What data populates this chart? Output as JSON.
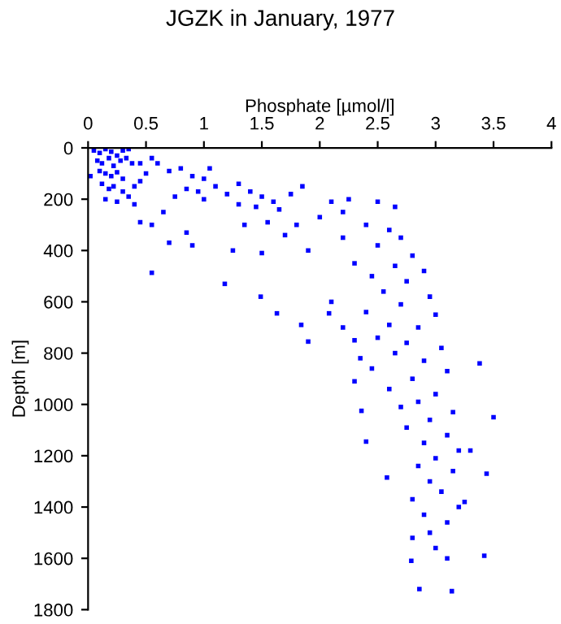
{
  "chart_data": {
    "type": "scatter",
    "title": "JGZK in January, 1977",
    "xlabel": "Phosphate [µmol/l]",
    "ylabel": "Depth [m]",
    "xlim": [
      0,
      4
    ],
    "xticks": [
      0,
      0.5,
      1,
      1.5,
      2,
      2.5,
      3,
      3.5,
      4
    ],
    "ylim": [
      1800,
      0
    ],
    "yticks": [
      0,
      200,
      400,
      600,
      800,
      1000,
      1200,
      1400,
      1600,
      1800
    ],
    "grid": false,
    "legend": false,
    "marker": "square",
    "series": [
      {
        "color": "#0000ff",
        "x": [
          0.05,
          0.1,
          0.15,
          0.2,
          0.25,
          0.3,
          0.35,
          0.08,
          0.12,
          0.18,
          0.22,
          0.28,
          0.33,
          0.38,
          0.1,
          0.15,
          0.2,
          0.25,
          0.3,
          0.02,
          0.12,
          0.18,
          0.22,
          0.3,
          0.35,
          0.4,
          0.45,
          0.15,
          0.25,
          0.4,
          0.45,
          0.5,
          0.55,
          0.6,
          0.7,
          0.8,
          0.9,
          1.0,
          1.05,
          0.85,
          0.95,
          1.1,
          1.2,
          1.3,
          1.4,
          1.5,
          1.6,
          1.75,
          1.85,
          1.65,
          1.45,
          1.3,
          1.0,
          0.75,
          0.65,
          0.55,
          0.45,
          0.7,
          0.9,
          0.85,
          1.25,
          1.5,
          1.9,
          2.1,
          2.2,
          2.0,
          1.8,
          1.7,
          1.55,
          1.35,
          2.25,
          2.5,
          2.65,
          0.55,
          1.18,
          1.49,
          1.63,
          1.84,
          1.9,
          2.08,
          2.3,
          2.36,
          2.4,
          2.58,
          2.79,
          2.86,
          3.14,
          3.5,
          3.44,
          3.42,
          3.38,
          2.4,
          2.6,
          2.7,
          2.5,
          2.8,
          2.65,
          2.9,
          2.45,
          2.75,
          2.55,
          2.95,
          2.7,
          2.4,
          3.0,
          2.6,
          2.85,
          2.5,
          2.75,
          3.05,
          2.65,
          2.9,
          2.45,
          3.1,
          2.8,
          2.6,
          3.0,
          2.85,
          2.7,
          3.15,
          2.95,
          2.75,
          3.1,
          2.9,
          3.2,
          3.0,
          2.85,
          3.15,
          2.95,
          3.05,
          2.8,
          3.2,
          2.9,
          3.1,
          2.95,
          3.0,
          3.1,
          2.8,
          3.25,
          3.3,
          2.35,
          2.3,
          2.2,
          2.1,
          2.3,
          2.2
        ],
        "values": [
          10,
          20,
          5,
          15,
          30,
          10,
          5,
          50,
          60,
          40,
          70,
          50,
          40,
          60,
          90,
          100,
          110,
          95,
          120,
          110,
          140,
          160,
          150,
          170,
          190,
          150,
          130,
          200,
          210,
          220,
          60,
          100,
          40,
          60,
          90,
          80,
          110,
          120,
          80,
          160,
          170,
          150,
          180,
          140,
          170,
          190,
          210,
          180,
          150,
          240,
          230,
          220,
          200,
          190,
          250,
          300,
          290,
          370,
          380,
          330,
          400,
          410,
          400,
          210,
          250,
          270,
          300,
          340,
          290,
          300,
          200,
          210,
          230,
          487,
          530,
          580,
          645,
          690,
          755,
          645,
          910,
          1025,
          1145,
          1285,
          1610,
          1720,
          1728,
          1050,
          1270,
          1590,
          840,
          300,
          320,
          350,
          380,
          420,
          460,
          480,
          500,
          520,
          560,
          580,
          610,
          640,
          650,
          690,
          700,
          740,
          760,
          780,
          800,
          830,
          860,
          870,
          900,
          940,
          960,
          990,
          1010,
          1030,
          1060,
          1090,
          1120,
          1150,
          1180,
          1210,
          1240,
          1260,
          1300,
          1340,
          1370,
          1400,
          1430,
          1460,
          1500,
          1560,
          1600,
          1520,
          1380,
          1180,
          820,
          750,
          700,
          600,
          450,
          350
        ]
      }
    ]
  }
}
